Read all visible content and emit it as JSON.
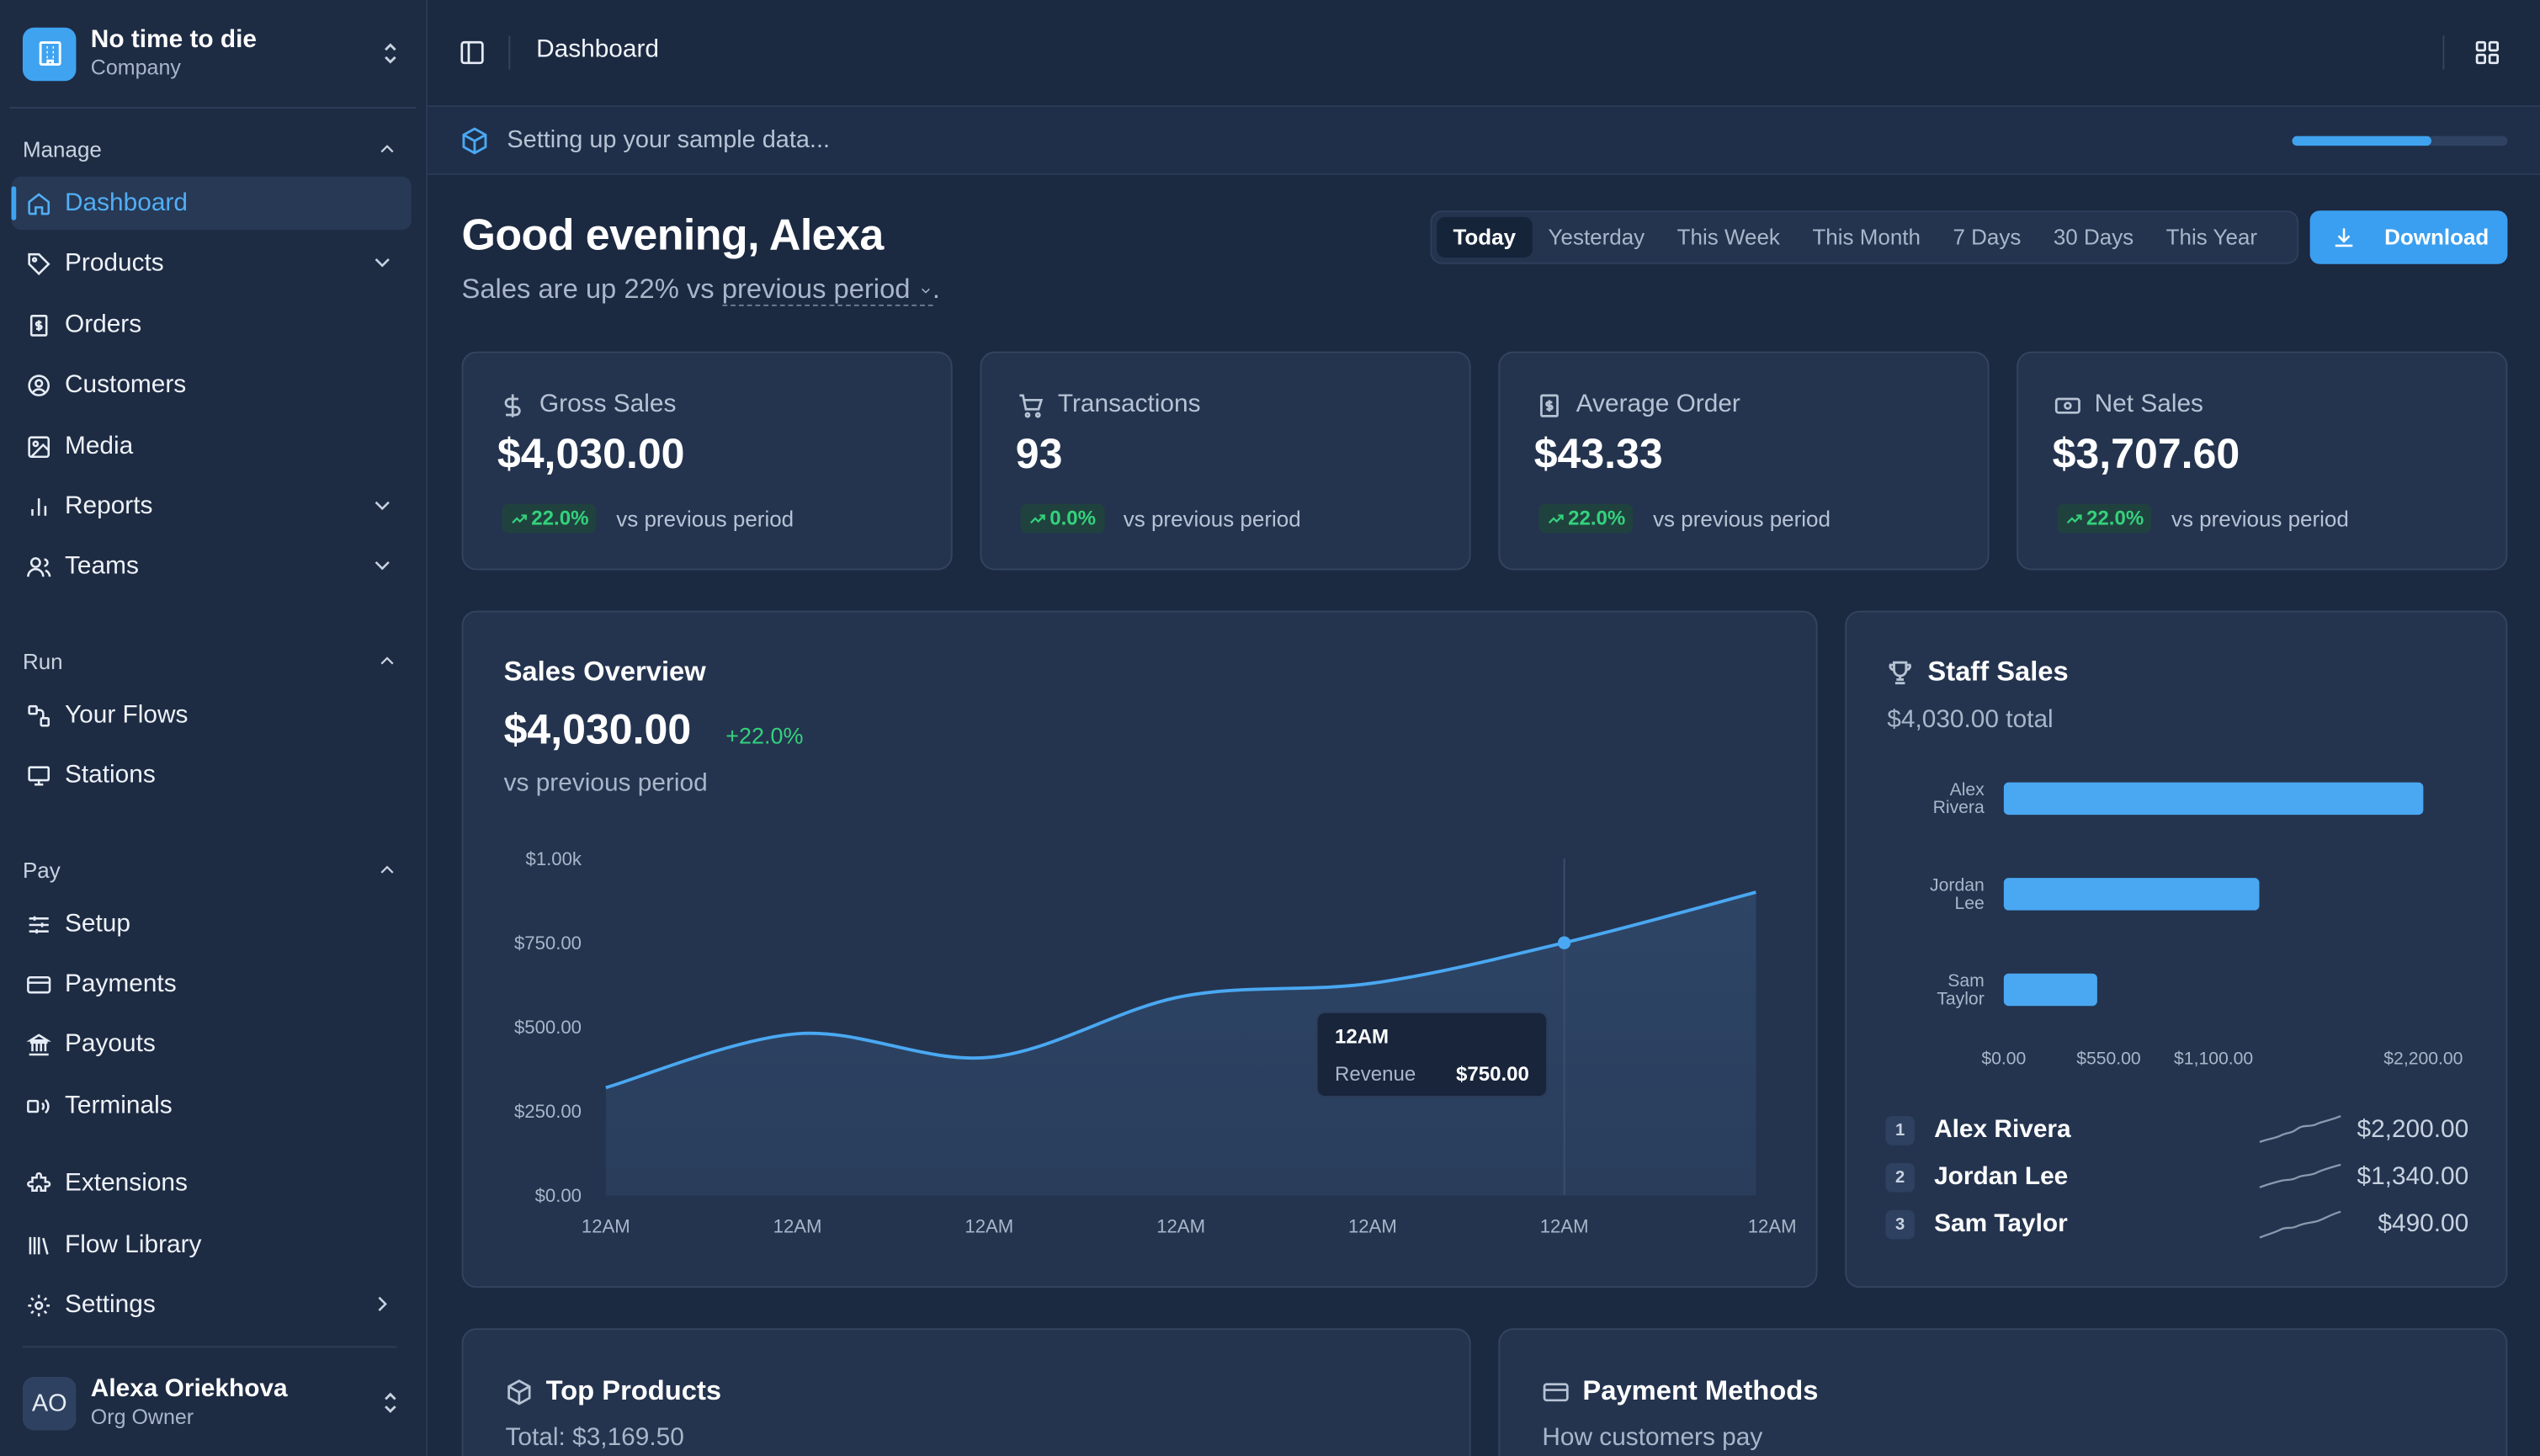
{
  "org": {
    "name": "No time to die",
    "subtitle": "Company"
  },
  "sidebar": {
    "sections": [
      {
        "label": "Manage"
      },
      {
        "label": "Run"
      },
      {
        "label": "Pay"
      }
    ],
    "manage_items": [
      {
        "label": "Dashboard",
        "icon": "home-icon",
        "active": true
      },
      {
        "label": "Products",
        "icon": "tag-icon",
        "expandable": true
      },
      {
        "label": "Orders",
        "icon": "receipt-icon"
      },
      {
        "label": "Customers",
        "icon": "user-circle-icon"
      },
      {
        "label": "Media",
        "icon": "image-icon"
      },
      {
        "label": "Reports",
        "icon": "bar-chart-icon",
        "expandable": true
      },
      {
        "label": "Teams",
        "icon": "users-icon",
        "expandable": true
      }
    ],
    "run_items": [
      {
        "label": "Your Flows",
        "icon": "flow-icon"
      },
      {
        "label": "Stations",
        "icon": "monitor-icon"
      }
    ],
    "pay_items": [
      {
        "label": "Setup",
        "icon": "sliders-icon"
      },
      {
        "label": "Payments",
        "icon": "credit-card-icon"
      },
      {
        "label": "Payouts",
        "icon": "bank-icon"
      },
      {
        "label": "Terminals",
        "icon": "terminal-icon"
      }
    ],
    "extra_items": [
      {
        "label": "Extensions",
        "icon": "puzzle-icon"
      },
      {
        "label": "Flow Library",
        "icon": "library-icon"
      },
      {
        "label": "Settings",
        "icon": "gear-icon"
      }
    ],
    "user": {
      "initials": "AO",
      "name": "Alexa Oriekhova",
      "role": "Org Owner"
    }
  },
  "topbar": {
    "title": "Dashboard"
  },
  "banner": {
    "text": "Setting up your sample data...",
    "progress": 0.65
  },
  "greeting": {
    "title": "Good evening, Alexa",
    "sub_prefix": "Sales are up 22% vs ",
    "sub_link": "previous period",
    "sub_suffix": "."
  },
  "ranges": [
    "Today",
    "Yesterday",
    "This Week",
    "This Month",
    "7 Days",
    "30 Days",
    "This Year"
  ],
  "selected_range": "Today",
  "download_label": "Download",
  "stats": [
    {
      "label": "Gross Sales",
      "value": "$4,030.00",
      "change": "22.0%",
      "compare": "vs previous period"
    },
    {
      "label": "Transactions",
      "value": "93",
      "change": "0.0%",
      "compare": "vs previous period"
    },
    {
      "label": "Average Order",
      "value": "$43.33",
      "change": "22.0%",
      "compare": "vs previous period"
    },
    {
      "label": "Net Sales",
      "value": "$3,707.60",
      "change": "22.0%",
      "compare": "vs previous period"
    }
  ],
  "sales_overview": {
    "title": "Sales Overview",
    "value": "$4,030.00",
    "change": "+22.0%",
    "compare": "vs previous period",
    "tooltip": {
      "time": "12AM",
      "label": "Revenue",
      "value": "$750.00"
    }
  },
  "chart_data": [
    {
      "type": "area",
      "title": "Sales Overview",
      "x": [
        "12AM",
        "12AM",
        "12AM",
        "12AM",
        "12AM",
        "12AM",
        "12AM"
      ],
      "series": [
        {
          "name": "Revenue",
          "values": [
            320,
            480,
            410,
            590,
            630,
            750,
            900
          ]
        }
      ],
      "y_ticks": [
        "$0.00",
        "$250.00",
        "$500.00",
        "$750.00",
        "$1.00k"
      ],
      "ylim": [
        0,
        1000
      ],
      "highlight_index": 5,
      "colors": {
        "line": "#4aa8f2",
        "fill": "#2e4566"
      }
    },
    {
      "type": "bar",
      "orientation": "horizontal",
      "title": "Staff Sales",
      "categories": [
        "Alex Rivera",
        "Jordan Lee",
        "Sam Taylor"
      ],
      "category_lines": [
        [
          "Alex",
          "Rivera"
        ],
        [
          "Jordan",
          "Lee"
        ],
        [
          "Sam",
          "Taylor"
        ]
      ],
      "values": [
        2200,
        1340,
        490
      ],
      "x_ticks": [
        {
          "value": 0,
          "label": "$0.00"
        },
        {
          "value": 550,
          "label": "$550.00"
        },
        {
          "value": 1100,
          "label": "$1,100.00"
        },
        {
          "value": 2200,
          "label": "$2,200.00"
        }
      ],
      "xlim": [
        0,
        2200
      ],
      "colors": {
        "bar": "#4aa8f2"
      }
    }
  ],
  "staff_sales": {
    "title": "Staff Sales",
    "total": "$4,030.00 total",
    "ranking": [
      {
        "rank": "1",
        "name": "Alex Rivera",
        "value": "$2,200.00"
      },
      {
        "rank": "2",
        "name": "Jordan Lee",
        "value": "$1,340.00"
      },
      {
        "rank": "3",
        "name": "Sam Taylor",
        "value": "$490.00"
      }
    ]
  },
  "top_products": {
    "title": "Top Products",
    "total": "Total: $3,169.50"
  },
  "payment_methods": {
    "title": "Payment Methods",
    "subtitle": "How customers pay"
  }
}
